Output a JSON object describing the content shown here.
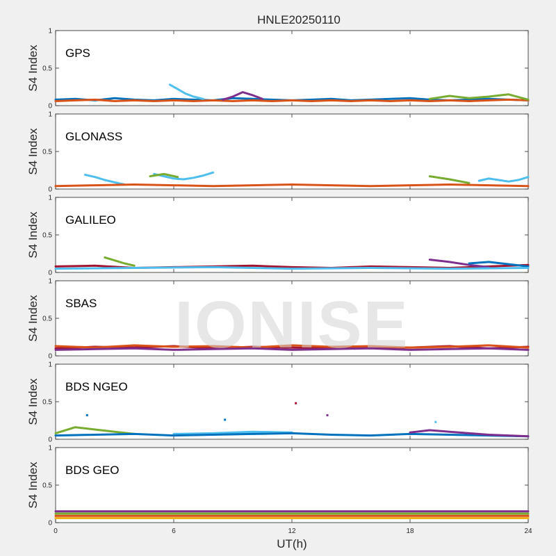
{
  "figure": {
    "title": "HNLE20250110",
    "watermark": "IONISE",
    "xlabel": "UT(h)",
    "colors": [
      "#0072BD",
      "#D95319",
      "#EDB120",
      "#7E2F8E",
      "#77AC30",
      "#4DBEEE",
      "#A2142F"
    ]
  },
  "chart_data": [
    {
      "type": "scatter",
      "title": "GPS",
      "ylabel": "S4 Index",
      "ylim": [
        0,
        1
      ],
      "yticks": [
        "0",
        "0.5",
        "1"
      ],
      "xlim": [
        0,
        24
      ],
      "xticks": [],
      "grid": false,
      "series": [
        {
          "color": "#0072BD",
          "x": [
            0,
            1,
            2,
            3,
            4,
            5,
            6,
            7,
            8,
            9,
            10,
            11,
            12,
            13,
            14,
            15,
            16,
            17,
            18,
            19,
            20,
            21,
            22,
            23,
            24
          ],
          "y": [
            0.08,
            0.09,
            0.07,
            0.1,
            0.08,
            0.07,
            0.09,
            0.08,
            0.07,
            0.1,
            0.09,
            0.08,
            0.07,
            0.08,
            0.09,
            0.07,
            0.08,
            0.09,
            0.1,
            0.08,
            0.07,
            0.08,
            0.09,
            0.08,
            0.07
          ]
        },
        {
          "color": "#D95319",
          "x": [
            0,
            1,
            2,
            3,
            4,
            5,
            6,
            7,
            8,
            9,
            10,
            11,
            12,
            13,
            14,
            15,
            16,
            17,
            18,
            19,
            20,
            21,
            22,
            23,
            24
          ],
          "y": [
            0.06,
            0.07,
            0.08,
            0.06,
            0.07,
            0.06,
            0.07,
            0.06,
            0.07,
            0.06,
            0.07,
            0.06,
            0.07,
            0.06,
            0.07,
            0.06,
            0.07,
            0.06,
            0.07,
            0.06,
            0.07,
            0.06,
            0.07,
            0.08,
            0.07
          ]
        },
        {
          "color": "#4DBEEE",
          "x": [
            5.8,
            6.2,
            6.6,
            7.0,
            7.5
          ],
          "y": [
            0.28,
            0.22,
            0.16,
            0.12,
            0.09
          ]
        },
        {
          "color": "#7E2F8E",
          "x": [
            8.5,
            9.0,
            9.5,
            10.0,
            10.5
          ],
          "y": [
            0.08,
            0.12,
            0.18,
            0.14,
            0.09
          ]
        },
        {
          "color": "#77AC30",
          "x": [
            19,
            20,
            21,
            22,
            23,
            24
          ],
          "y": [
            0.09,
            0.13,
            0.1,
            0.12,
            0.15,
            0.08
          ]
        }
      ]
    },
    {
      "type": "scatter",
      "title": "GLONASS",
      "ylabel": "S4 Index",
      "ylim": [
        0,
        1
      ],
      "yticks": [
        "0",
        "0.5",
        "1"
      ],
      "xlim": [
        0,
        24
      ],
      "xticks": [],
      "grid": false,
      "series": [
        {
          "color": "#4DBEEE",
          "x": [
            1.5,
            2,
            2.5,
            3,
            3.5
          ],
          "y": [
            0.19,
            0.16,
            0.12,
            0.09,
            0.06
          ]
        },
        {
          "color": "#4DBEEE",
          "x": [
            5,
            5.5,
            6,
            6.5,
            7,
            7.5,
            8
          ],
          "y": [
            0.2,
            0.17,
            0.14,
            0.13,
            0.15,
            0.18,
            0.22
          ]
        },
        {
          "color": "#77AC30",
          "x": [
            4.8,
            5.5,
            6.2
          ],
          "y": [
            0.17,
            0.2,
            0.16
          ]
        },
        {
          "color": "#D95319",
          "x": [
            0,
            2,
            4,
            6,
            8,
            10,
            12,
            14,
            16,
            18,
            20,
            22,
            24
          ],
          "y": [
            0.04,
            0.05,
            0.06,
            0.05,
            0.04,
            0.05,
            0.06,
            0.05,
            0.04,
            0.05,
            0.06,
            0.05,
            0.04
          ]
        },
        {
          "color": "#77AC30",
          "x": [
            19,
            20,
            21
          ],
          "y": [
            0.17,
            0.13,
            0.08
          ]
        },
        {
          "color": "#4DBEEE",
          "x": [
            21.5,
            22,
            22.5,
            23,
            23.5,
            24
          ],
          "y": [
            0.11,
            0.14,
            0.12,
            0.1,
            0.12,
            0.16
          ]
        }
      ]
    },
    {
      "type": "scatter",
      "title": "GALILEO",
      "ylabel": "S4 Index",
      "ylim": [
        0,
        1
      ],
      "yticks": [
        "0",
        "0.5",
        "1"
      ],
      "xlim": [
        0,
        24
      ],
      "xticks": [],
      "grid": false,
      "series": [
        {
          "color": "#A2142F",
          "x": [
            0,
            2,
            4,
            6,
            8,
            10,
            12,
            14,
            16,
            18,
            20,
            22,
            24
          ],
          "y": [
            0.08,
            0.09,
            0.06,
            0.07,
            0.08,
            0.09,
            0.07,
            0.06,
            0.08,
            0.07,
            0.06,
            0.08,
            0.1
          ]
        },
        {
          "color": "#77AC30",
          "x": [
            2.5,
            3,
            3.5,
            4
          ],
          "y": [
            0.2,
            0.16,
            0.12,
            0.09
          ]
        },
        {
          "color": "#7E2F8E",
          "x": [
            19,
            20,
            21,
            22
          ],
          "y": [
            0.17,
            0.14,
            0.1,
            0.07
          ]
        },
        {
          "color": "#0072BD",
          "x": [
            21,
            22,
            23,
            24
          ],
          "y": [
            0.12,
            0.14,
            0.11,
            0.08
          ]
        },
        {
          "color": "#4DBEEE",
          "x": [
            0,
            4,
            8,
            12,
            16,
            20,
            24
          ],
          "y": [
            0.05,
            0.06,
            0.07,
            0.05,
            0.06,
            0.05,
            0.06
          ]
        }
      ]
    },
    {
      "type": "scatter",
      "title": "SBAS",
      "ylabel": "S4 Index",
      "ylim": [
        0,
        1
      ],
      "yticks": [
        "0",
        "0.5",
        "1"
      ],
      "xlim": [
        0,
        24
      ],
      "xticks": [],
      "grid": false,
      "series": [
        {
          "color": "#A2142F",
          "x": [
            0,
            2,
            4,
            6,
            8,
            10,
            12,
            14,
            16,
            18,
            20,
            22,
            24
          ],
          "y": [
            0.1,
            0.12,
            0.11,
            0.13,
            0.1,
            0.12,
            0.11,
            0.1,
            0.12,
            0.11,
            0.13,
            0.1,
            0.12
          ]
        },
        {
          "color": "#D95319",
          "x": [
            0,
            2,
            4,
            6,
            8,
            10,
            12,
            14,
            16,
            18,
            20,
            22,
            24
          ],
          "y": [
            0.13,
            0.11,
            0.14,
            0.12,
            0.13,
            0.11,
            0.14,
            0.12,
            0.13,
            0.11,
            0.12,
            0.14,
            0.11
          ]
        },
        {
          "color": "#7E2F8E",
          "x": [
            0,
            2,
            4,
            6,
            8,
            10,
            12,
            14,
            16,
            18,
            20,
            22,
            24
          ],
          "y": [
            0.08,
            0.09,
            0.1,
            0.08,
            0.09,
            0.1,
            0.08,
            0.09,
            0.1,
            0.08,
            0.09,
            0.1,
            0.08
          ]
        }
      ]
    },
    {
      "type": "scatter",
      "title": "BDS NGEO",
      "ylabel": "S4 Index",
      "ylim": [
        0,
        1
      ],
      "yticks": [
        "0",
        "0.5",
        "1"
      ],
      "xlim": [
        0,
        24
      ],
      "xticks": [],
      "grid": false,
      "series": [
        {
          "color": "#77AC30",
          "x": [
            0,
            1,
            2,
            3,
            4
          ],
          "y": [
            0.08,
            0.16,
            0.13,
            0.1,
            0.07
          ]
        },
        {
          "color": "#4DBEEE",
          "x": [
            6,
            8,
            10,
            12
          ],
          "y": [
            0.07,
            0.08,
            0.1,
            0.09
          ]
        },
        {
          "color": "#0072BD",
          "x": [
            0,
            2,
            4,
            6,
            8,
            10,
            12,
            14,
            16,
            18,
            20,
            22,
            24
          ],
          "y": [
            0.05,
            0.06,
            0.07,
            0.05,
            0.06,
            0.07,
            0.08,
            0.06,
            0.05,
            0.07,
            0.06,
            0.05,
            0.04
          ]
        },
        {
          "color": "#7E2F8E",
          "x": [
            18,
            19,
            20,
            21,
            22,
            23,
            24
          ],
          "y": [
            0.09,
            0.12,
            0.1,
            0.08,
            0.06,
            0.05,
            0.04
          ]
        },
        {
          "color": "#0072BD",
          "x": [
            1.6
          ],
          "y": [
            0.32
          ]
        },
        {
          "color": "#0072BD",
          "x": [
            8.6
          ],
          "y": [
            0.26
          ]
        },
        {
          "color": "#A2142F",
          "x": [
            12.2
          ],
          "y": [
            0.48
          ]
        },
        {
          "color": "#7E2F8E",
          "x": [
            13.8
          ],
          "y": [
            0.32
          ]
        },
        {
          "color": "#4DBEEE",
          "x": [
            19.3
          ],
          "y": [
            0.23
          ]
        }
      ]
    },
    {
      "type": "scatter",
      "title": "BDS GEO",
      "ylabel": "S4 Index",
      "ylim": [
        0,
        1
      ],
      "yticks": [
        "0",
        "0.5",
        "1"
      ],
      "xlim": [
        0,
        24
      ],
      "xticks": [
        "0",
        "6",
        "12",
        "18",
        "24"
      ],
      "grid": false,
      "series": [
        {
          "color": "#7E2F8E",
          "x": [
            0,
            24
          ],
          "y": [
            0.15,
            0.15
          ]
        },
        {
          "color": "#77AC30",
          "x": [
            0,
            24
          ],
          "y": [
            0.12,
            0.12
          ]
        },
        {
          "color": "#D95319",
          "x": [
            0,
            24
          ],
          "y": [
            0.09,
            0.09
          ]
        },
        {
          "color": "#EDB120",
          "x": [
            0,
            24
          ],
          "y": [
            0.06,
            0.06
          ]
        }
      ]
    }
  ]
}
